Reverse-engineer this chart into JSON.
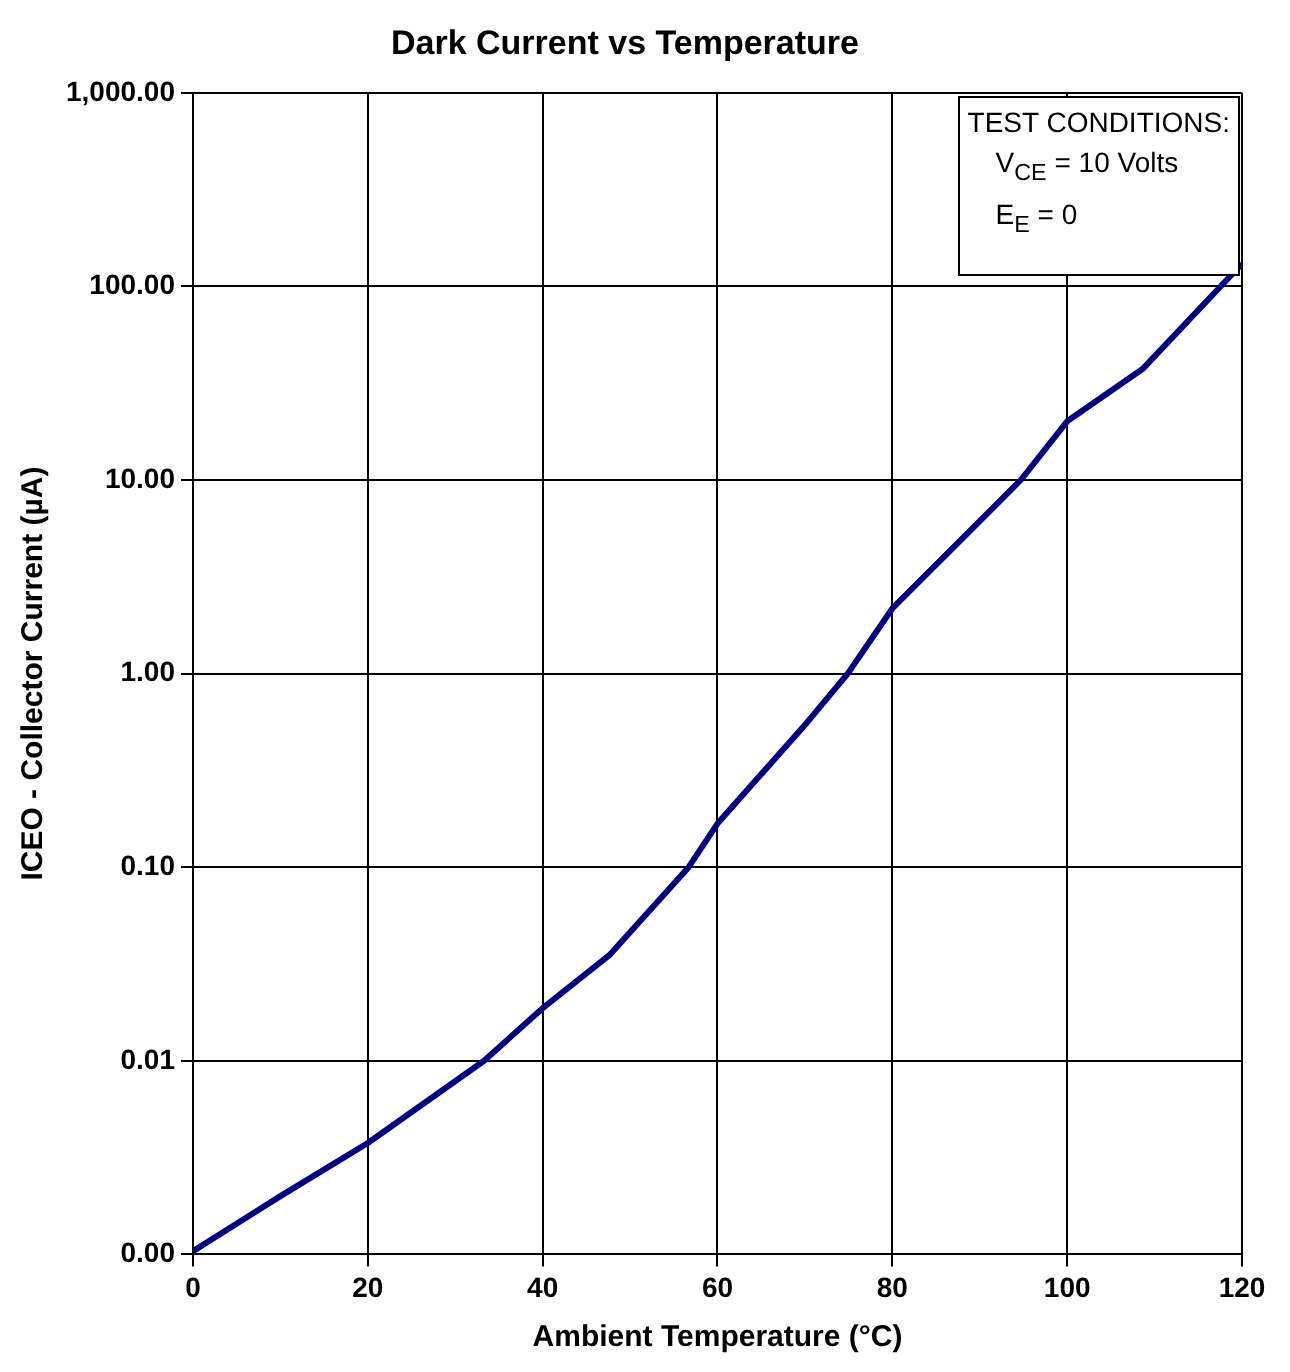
{
  "chart_data": {
    "type": "line",
    "title": "Dark Current vs Temperature",
    "xlabel": "Ambient Temperature (°C)",
    "ylabel": "ICEO - Collector Current (µA)",
    "x": [
      0,
      10,
      20,
      33.3,
      40,
      47.6,
      56.7,
      60,
      70.2,
      74.9,
      80,
      94.7,
      100,
      108.7,
      120
    ],
    "series": [
      {
        "color": "#000080",
        "values": [
          0.00104,
          0.002,
          0.00376,
          0.01,
          0.0187,
          0.035,
          0.1,
          0.168,
          0.556,
          1,
          2.17,
          10,
          20.1,
          37.7,
          131
        ]
      }
    ],
    "log": "y",
    "xlim": [
      0,
      120
    ],
    "xticks": [
      0,
      20,
      40,
      60,
      80,
      100,
      120
    ],
    "ylim": [
      0.001,
      1000
    ],
    "yticks": [
      {
        "value": 0.001,
        "label": "0.00"
      },
      {
        "value": 0.01,
        "label": "0.01"
      },
      {
        "value": 0.1,
        "label": "0.10"
      },
      {
        "value": 1,
        "label": "1.00"
      },
      {
        "value": 10,
        "label": "10.00"
      },
      {
        "value": 100,
        "label": "100.00"
      },
      {
        "value": 1000,
        "label": "1,000.00"
      }
    ],
    "grid": true,
    "legend": false,
    "marker": "none",
    "line_style": "solid",
    "annotations": [
      "TEST CONDITIONS:",
      "V$_{CE}$ = 10 Volts",
      "E$_{E}$ = 0"
    ]
  }
}
